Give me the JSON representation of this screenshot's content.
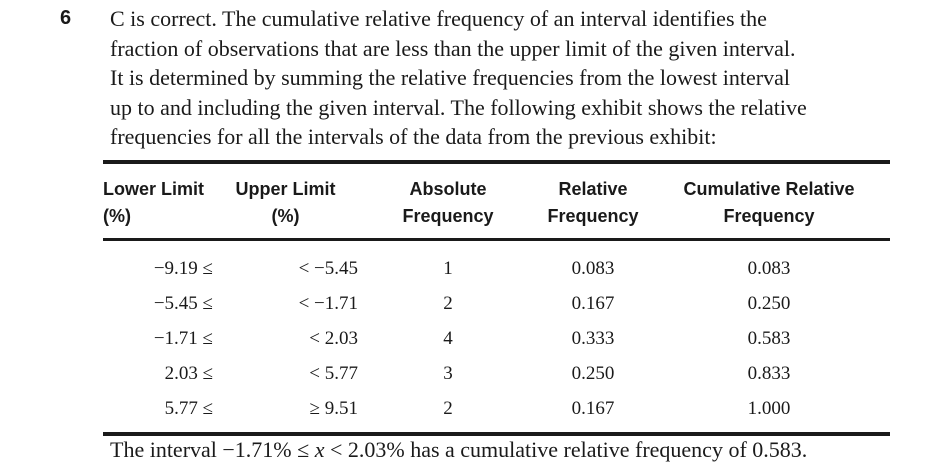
{
  "question_number": "6",
  "paragraph_lines": [
    "C is correct. The cumulative relative frequency of an interval identifies the",
    "fraction of observations that are less than the upper limit of the given interval.",
    "It is determined by summing the relative frequencies from the lowest interval",
    "up to and including the given interval. The following exhibit shows the relative",
    "frequencies for all the intervals of the data from the previous exhibit:"
  ],
  "table": {
    "headers": [
      [
        "Lower Limit",
        "(%)"
      ],
      [
        "Upper Limit",
        "(%)"
      ],
      [
        "Absolute",
        "Frequency"
      ],
      [
        "Relative",
        "Frequency"
      ],
      [
        "Cumulative Relative",
        "Frequency"
      ]
    ],
    "rows": [
      [
        "−9.19 ≤",
        "< −5.45",
        "1",
        "0.083",
        "0.083"
      ],
      [
        "−5.45 ≤",
        "< −1.71",
        "2",
        "0.167",
        "0.250"
      ],
      [
        "−1.71 ≤",
        "< 2.03",
        "4",
        "0.333",
        "0.583"
      ],
      [
        "2.03 ≤",
        "< 5.77",
        "3",
        "0.250",
        "0.833"
      ],
      [
        "5.77 ≤",
        "≥ 9.51",
        "2",
        "0.167",
        "1.000"
      ]
    ]
  },
  "conclusion": {
    "before": "The interval −1.71% ≤ ",
    "variable": "x",
    "after": " < 2.03% has a cumulative relative frequency of 0.583."
  }
}
